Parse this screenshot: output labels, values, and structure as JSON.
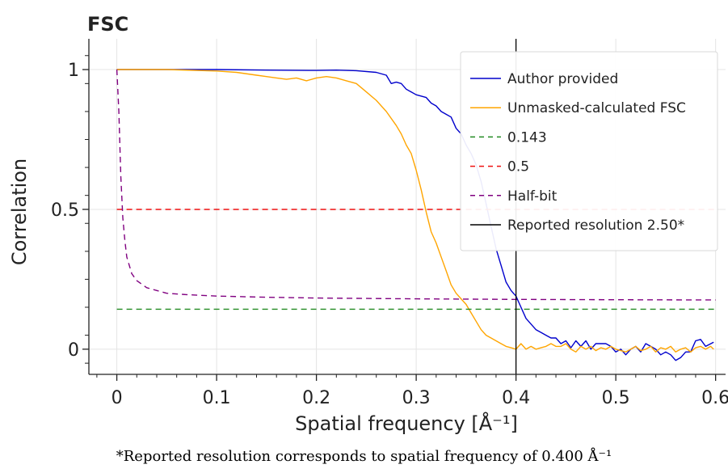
{
  "chart_data": {
    "type": "line",
    "title": "FSC",
    "xlabel": "Spatial frequency [Å⁻¹]",
    "ylabel": "Correlation",
    "xlim": [
      -0.028,
      0.61
    ],
    "ylim": [
      -0.09,
      1.11
    ],
    "xticks": [
      0,
      0.1,
      0.2,
      0.3,
      0.4,
      0.5,
      0.6
    ],
    "xtick_labels": [
      "0",
      "0.1",
      "0.2",
      "0.3",
      "0.4",
      "0.5",
      "0.6"
    ],
    "yticks": [
      0,
      0.5,
      1
    ],
    "ytick_labels": [
      "0",
      "0.5",
      "1"
    ],
    "grid": true,
    "legend_position": "top-right",
    "series": [
      {
        "name": "Author provided",
        "color": "#0000cc",
        "style": "solid",
        "points": [
          [
            0,
            1.0
          ],
          [
            0.05,
            1.0
          ],
          [
            0.1,
            1.0
          ],
          [
            0.15,
            0.998
          ],
          [
            0.2,
            0.997
          ],
          [
            0.22,
            0.998
          ],
          [
            0.24,
            0.996
          ],
          [
            0.26,
            0.99
          ],
          [
            0.27,
            0.98
          ],
          [
            0.275,
            0.95
          ],
          [
            0.28,
            0.955
          ],
          [
            0.285,
            0.95
          ],
          [
            0.29,
            0.93
          ],
          [
            0.3,
            0.91
          ],
          [
            0.31,
            0.9
          ],
          [
            0.315,
            0.88
          ],
          [
            0.32,
            0.87
          ],
          [
            0.325,
            0.85
          ],
          [
            0.33,
            0.84
          ],
          [
            0.335,
            0.83
          ],
          [
            0.34,
            0.79
          ],
          [
            0.345,
            0.77
          ],
          [
            0.35,
            0.73
          ],
          [
            0.355,
            0.7
          ],
          [
            0.36,
            0.66
          ],
          [
            0.365,
            0.6
          ],
          [
            0.37,
            0.52
          ],
          [
            0.375,
            0.44
          ],
          [
            0.38,
            0.36
          ],
          [
            0.385,
            0.3
          ],
          [
            0.39,
            0.24
          ],
          [
            0.395,
            0.21
          ],
          [
            0.4,
            0.19
          ],
          [
            0.405,
            0.15
          ],
          [
            0.41,
            0.11
          ],
          [
            0.415,
            0.09
          ],
          [
            0.42,
            0.07
          ],
          [
            0.425,
            0.06
          ],
          [
            0.43,
            0.05
          ],
          [
            0.435,
            0.04
          ],
          [
            0.44,
            0.04
          ],
          [
            0.445,
            0.02
          ],
          [
            0.45,
            0.03
          ],
          [
            0.455,
            0.005
          ],
          [
            0.46,
            0.03
          ],
          [
            0.465,
            0.01
          ],
          [
            0.47,
            0.03
          ],
          [
            0.475,
            0.0
          ],
          [
            0.48,
            0.02
          ],
          [
            0.485,
            0.02
          ],
          [
            0.49,
            0.02
          ],
          [
            0.495,
            0.01
          ],
          [
            0.5,
            -0.01
          ],
          [
            0.505,
            0.0
          ],
          [
            0.51,
            -0.02
          ],
          [
            0.515,
            0.0
          ],
          [
            0.52,
            0.01
          ],
          [
            0.525,
            -0.01
          ],
          [
            0.53,
            0.02
          ],
          [
            0.535,
            0.01
          ],
          [
            0.54,
            0.0
          ],
          [
            0.545,
            -0.02
          ],
          [
            0.55,
            -0.01
          ],
          [
            0.555,
            -0.02
          ],
          [
            0.56,
            -0.04
          ],
          [
            0.565,
            -0.03
          ],
          [
            0.57,
            -0.01
          ],
          [
            0.575,
            -0.01
          ],
          [
            0.58,
            0.03
          ],
          [
            0.585,
            0.035
          ],
          [
            0.59,
            0.01
          ],
          [
            0.598,
            0.025
          ]
        ]
      },
      {
        "name": "Unmasked-calculated FSC",
        "color": "#ffa500",
        "style": "solid",
        "points": [
          [
            0,
            1.0
          ],
          [
            0.05,
            1.0
          ],
          [
            0.1,
            0.995
          ],
          [
            0.12,
            0.99
          ],
          [
            0.14,
            0.98
          ],
          [
            0.15,
            0.975
          ],
          [
            0.16,
            0.97
          ],
          [
            0.17,
            0.965
          ],
          [
            0.18,
            0.97
          ],
          [
            0.19,
            0.96
          ],
          [
            0.2,
            0.97
          ],
          [
            0.21,
            0.975
          ],
          [
            0.22,
            0.97
          ],
          [
            0.23,
            0.96
          ],
          [
            0.24,
            0.95
          ],
          [
            0.25,
            0.92
          ],
          [
            0.26,
            0.89
          ],
          [
            0.27,
            0.85
          ],
          [
            0.28,
            0.8
          ],
          [
            0.285,
            0.77
          ],
          [
            0.29,
            0.73
          ],
          [
            0.295,
            0.7
          ],
          [
            0.3,
            0.64
          ],
          [
            0.305,
            0.57
          ],
          [
            0.31,
            0.49
          ],
          [
            0.315,
            0.42
          ],
          [
            0.32,
            0.38
          ],
          [
            0.325,
            0.33
          ],
          [
            0.33,
            0.28
          ],
          [
            0.335,
            0.23
          ],
          [
            0.34,
            0.2
          ],
          [
            0.345,
            0.18
          ],
          [
            0.35,
            0.16
          ],
          [
            0.355,
            0.13
          ],
          [
            0.36,
            0.1
          ],
          [
            0.365,
            0.07
          ],
          [
            0.37,
            0.05
          ],
          [
            0.375,
            0.04
          ],
          [
            0.38,
            0.03
          ],
          [
            0.385,
            0.02
          ],
          [
            0.39,
            0.01
          ],
          [
            0.395,
            0.005
          ],
          [
            0.4,
            0.0
          ],
          [
            0.405,
            0.02
          ],
          [
            0.41,
            0.0
          ],
          [
            0.415,
            0.01
          ],
          [
            0.42,
            0.0
          ],
          [
            0.425,
            0.005
          ],
          [
            0.43,
            0.01
          ],
          [
            0.435,
            0.02
          ],
          [
            0.44,
            0.01
          ],
          [
            0.445,
            0.01
          ],
          [
            0.45,
            0.02
          ],
          [
            0.455,
            0.0
          ],
          [
            0.46,
            -0.01
          ],
          [
            0.465,
            0.01
          ],
          [
            0.47,
            0.0
          ],
          [
            0.475,
            0.01
          ],
          [
            0.48,
            -0.005
          ],
          [
            0.485,
            0.005
          ],
          [
            0.49,
            0.0
          ],
          [
            0.495,
            0.01
          ],
          [
            0.5,
            0.0
          ],
          [
            0.505,
            -0.005
          ],
          [
            0.51,
            -0.01
          ],
          [
            0.515,
            0.0
          ],
          [
            0.52,
            0.01
          ],
          [
            0.525,
            -0.005
          ],
          [
            0.53,
            0.0
          ],
          [
            0.535,
            0.01
          ],
          [
            0.54,
            -0.01
          ],
          [
            0.545,
            0.005
          ],
          [
            0.55,
            0.0
          ],
          [
            0.555,
            0.01
          ],
          [
            0.56,
            -0.01
          ],
          [
            0.565,
            0.0
          ],
          [
            0.57,
            0.005
          ],
          [
            0.575,
            -0.01
          ],
          [
            0.58,
            0.005
          ],
          [
            0.585,
            0.01
          ],
          [
            0.59,
            0.0
          ],
          [
            0.595,
            0.01
          ],
          [
            0.598,
            0.0
          ]
        ]
      },
      {
        "name": "0.143",
        "color": "#228b22",
        "style": "dashed",
        "points": [
          [
            0,
            0.143
          ],
          [
            0.6,
            0.143
          ]
        ]
      },
      {
        "name": "0.5",
        "color": "#ee1111",
        "style": "dashed",
        "points": [
          [
            0,
            0.5
          ],
          [
            0.6,
            0.5
          ]
        ]
      },
      {
        "name": "Half-bit",
        "color": "#800080",
        "style": "dashed",
        "points": [
          [
            0,
            1.0
          ],
          [
            0.002,
            0.85
          ],
          [
            0.004,
            0.62
          ],
          [
            0.006,
            0.47
          ],
          [
            0.008,
            0.39
          ],
          [
            0.01,
            0.33
          ],
          [
            0.015,
            0.27
          ],
          [
            0.02,
            0.245
          ],
          [
            0.03,
            0.22
          ],
          [
            0.04,
            0.21
          ],
          [
            0.05,
            0.2
          ],
          [
            0.07,
            0.195
          ],
          [
            0.1,
            0.19
          ],
          [
            0.15,
            0.186
          ],
          [
            0.2,
            0.183
          ],
          [
            0.3,
            0.18
          ],
          [
            0.4,
            0.178
          ],
          [
            0.5,
            0.177
          ],
          [
            0.6,
            0.176
          ]
        ]
      },
      {
        "name": "Reported resolution 2.50*",
        "color": "#000000",
        "style": "vline",
        "x": 0.4
      }
    ]
  },
  "caption": "*Reported resolution corresponds to spatial frequency of 0.400 Å⁻¹"
}
